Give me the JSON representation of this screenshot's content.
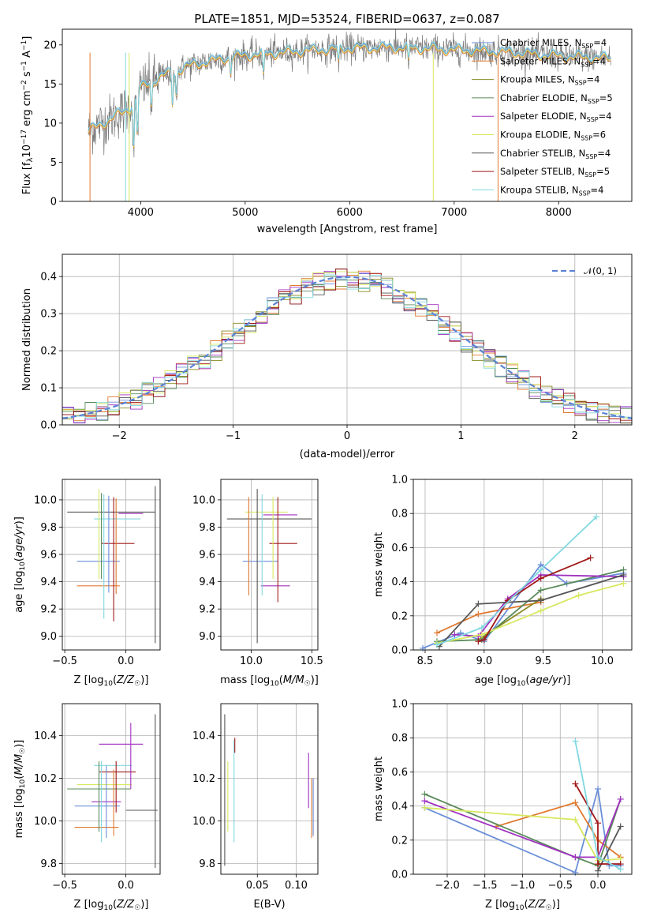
{
  "title": "PLATE=1851, MJD=53524, FIBERID=0637, z=0.087",
  "colors": {
    "Chabrier MILES": "#6a8fd8",
    "Salpeter MILES": "#e07a30",
    "Kroupa MILES": "#8a8a20",
    "Chabrier ELODIE": "#5a8a5a",
    "Salpeter ELODIE": "#a030c0",
    "Kroupa ELODIE": "#d8e860",
    "Chabrier STELIB": "#555555",
    "Salpeter STELIB": "#a01818",
    "Kroupa STELIB": "#80d8e0"
  },
  "chart_data": [
    {
      "id": "spectrum",
      "type": "line",
      "title": "PLATE=1851, MJD=53524, FIBERID=0637, z=0.087",
      "xlabel": "wavelength [Angstrom, rest frame]",
      "ylabel": "Flux [f_λ10^-17 erg cm^-2 s^-1 A^-1]",
      "xlim": [
        3250,
        8700
      ],
      "ylim": [
        0,
        22
      ],
      "xticks": [
        4000,
        5000,
        6000,
        7000,
        8000
      ],
      "yticks": [
        0,
        5,
        10,
        15,
        20
      ],
      "grid": false,
      "legend_position": "right",
      "legend": [
        {
          "name": "Chabrier MILES",
          "nssp": "4"
        },
        {
          "name": "Salpeter MILES",
          "nssp": "4"
        },
        {
          "name": "Kroupa MILES",
          "nssp": "4"
        },
        {
          "name": "Chabrier ELODIE",
          "nssp": "5"
        },
        {
          "name": "Salpeter ELODIE",
          "nssp": "4"
        },
        {
          "name": "Kroupa ELODIE",
          "nssp": "6"
        },
        {
          "name": "Chabrier STELIB",
          "nssp": "4"
        },
        {
          "name": "Salpeter STELIB",
          "nssp": "5"
        },
        {
          "name": "Kroupa STELIB",
          "nssp": "4"
        }
      ],
      "continuum": {
        "x": [
          3500,
          3700,
          3900,
          4000,
          4200,
          4500,
          4800,
          5000,
          5300,
          5600,
          6000,
          6500,
          7000,
          7500,
          8000,
          8500
        ],
        "y": [
          9,
          10.5,
          12,
          14.5,
          16,
          17.5,
          18.3,
          18.7,
          19,
          19.3,
          19.6,
          19.7,
          19.4,
          19.1,
          18.6,
          18.3
        ]
      }
    },
    {
      "id": "residuals",
      "type": "line",
      "xlabel": "(data-model)/error",
      "ylabel": "Normed distribution",
      "xlim": [
        -2.5,
        2.5
      ],
      "ylim": [
        0,
        0.46
      ],
      "xticks": [
        -2,
        -1,
        0,
        1,
        2
      ],
      "yticks": [
        0.0,
        0.1,
        0.2,
        0.3,
        0.4
      ],
      "grid": true,
      "legend_position": "top-right",
      "legend": [
        "𝒩(0, 1)"
      ],
      "bins": 50
    },
    {
      "id": "age-vs-Z",
      "type": "scatter",
      "xlabel": "Z [log10(Z/Z☉)]",
      "ylabel": "age [log10(age/yr)]",
      "xlim": [
        -0.52,
        0.28
      ],
      "ylim": [
        8.9,
        10.15
      ],
      "xticks": [
        -0.5,
        0.0
      ],
      "yticks": [
        9.0,
        9.2,
        9.4,
        9.6,
        9.8,
        10.0
      ],
      "grid": true,
      "errorbars": [
        {
          "series": "Chabrier STELIB",
          "x": [
            -0.48,
            0.24
          ],
          "y": [
            9.91,
            9.91
          ]
        },
        {
          "series": "Kroupa STELIB",
          "x": [
            -0.26,
            0.12
          ],
          "y": [
            9.86,
            9.86
          ]
        },
        {
          "series": "Salpeter ELODIE",
          "x": [
            -0.06,
            0.14
          ],
          "y": [
            9.9,
            9.9
          ]
        },
        {
          "series": "Salpeter STELIB",
          "x": [
            -0.2,
            0.07
          ],
          "y": [
            9.68,
            9.68
          ]
        },
        {
          "series": "Chabrier MILES",
          "x": [
            -0.4,
            -0.05
          ],
          "y": [
            9.55,
            9.55
          ]
        },
        {
          "series": "Salpeter MILES",
          "x": [
            -0.4,
            -0.05
          ],
          "y": [
            9.37,
            9.37
          ]
        },
        {
          "series": "Chabrier STELIB",
          "x": [
            0.24,
            0.24
          ],
          "y": [
            8.95,
            10.1
          ]
        },
        {
          "series": "Kroupa ELODIE",
          "x": [
            -0.22,
            -0.22
          ],
          "y": [
            9.42,
            10.08
          ]
        },
        {
          "series": "Chabrier ELODIE",
          "x": [
            -0.2,
            -0.2
          ],
          "y": [
            9.42,
            10.05
          ]
        },
        {
          "series": "Kroupa STELIB",
          "x": [
            -0.18,
            -0.18
          ],
          "y": [
            9.13,
            10.04
          ]
        },
        {
          "series": "Chabrier MILES",
          "x": [
            -0.14,
            -0.14
          ],
          "y": [
            9.32,
            10.03
          ]
        },
        {
          "series": "Salpeter STELIB",
          "x": [
            -0.1,
            -0.1
          ],
          "y": [
            9.11,
            10.02
          ]
        },
        {
          "series": "Salpeter MILES",
          "x": [
            -0.08,
            -0.08
          ],
          "y": [
            9.31,
            10.01
          ]
        }
      ]
    },
    {
      "id": "age-vs-mass",
      "type": "scatter",
      "xlabel": "mass [log10(M/M☉)]",
      "ylabel": "",
      "xlim": [
        9.75,
        10.55
      ],
      "ylim": [
        8.9,
        10.15
      ],
      "xticks": [
        10.0,
        10.5
      ],
      "yticks": [
        9.0,
        9.2,
        9.4,
        9.6,
        9.8,
        10.0
      ],
      "grid": true,
      "errorbars": [
        {
          "series": "Chabrier STELIB",
          "x": [
            9.8,
            10.5
          ],
          "y": [
            9.86,
            9.86
          ]
        },
        {
          "series": "Kroupa ELODIE",
          "x": [
            9.95,
            10.3
          ],
          "y": [
            9.91,
            9.91
          ]
        },
        {
          "series": "Salpeter ELODIE",
          "x": [
            10.1,
            10.38
          ],
          "y": [
            9.89,
            9.89
          ]
        },
        {
          "series": "Salpeter STELIB",
          "x": [
            10.15,
            10.38
          ],
          "y": [
            9.68,
            9.68
          ]
        },
        {
          "series": "Chabrier MILES",
          "x": [
            9.93,
            10.22
          ],
          "y": [
            9.55,
            9.55
          ]
        },
        {
          "series": "Salpeter ELODIE",
          "x": [
            10.08,
            10.32
          ],
          "y": [
            9.37,
            9.37
          ]
        },
        {
          "series": "Chabrier STELIB",
          "x": [
            10.05,
            10.05
          ],
          "y": [
            8.95,
            10.08
          ]
        },
        {
          "series": "Salpeter MILES",
          "x": [
            9.98,
            9.98
          ],
          "y": [
            9.3,
            10.02
          ]
        },
        {
          "series": "Kroupa STELIB",
          "x": [
            10.09,
            10.09
          ],
          "y": [
            9.3,
            10.04
          ]
        },
        {
          "series": "Salpeter STELIB",
          "x": [
            10.22,
            10.22
          ],
          "y": [
            9.25,
            10.02
          ]
        },
        {
          "series": "Kroupa ELODIE",
          "x": [
            10.18,
            10.18
          ],
          "y": [
            9.42,
            10.02
          ]
        }
      ]
    },
    {
      "id": "weight-vs-age",
      "type": "line",
      "xlabel": "age [log10(age/yr)]",
      "ylabel": "mass weight",
      "xlim": [
        8.4,
        10.25
      ],
      "ylim": [
        0,
        1.0
      ],
      "xticks": [
        8.5,
        9.0,
        9.5,
        10.0
      ],
      "yticks": [
        0.0,
        0.2,
        0.4,
        0.6,
        0.8,
        1.0
      ],
      "grid": true,
      "series": [
        {
          "key": "Chabrier MILES",
          "x": [
            8.48,
            8.8,
            9.0,
            9.48,
            9.7,
            10.18
          ],
          "y": [
            0.01,
            0.1,
            0.05,
            0.5,
            0.39,
            0.45
          ]
        },
        {
          "key": "Salpeter MILES",
          "x": [
            8.6,
            8.95,
            9.48
          ],
          "y": [
            0.1,
            0.21,
            0.28
          ]
        },
        {
          "key": "Kroupa MILES",
          "x": [
            8.95,
            9.48
          ],
          "y": [
            0.06,
            0.3
          ]
        },
        {
          "key": "Chabrier ELODIE",
          "x": [
            8.6,
            8.98,
            9.48,
            10.18
          ],
          "y": [
            0.05,
            0.06,
            0.35,
            0.47
          ]
        },
        {
          "key": "Salpeter ELODIE",
          "x": [
            8.75,
            8.95,
            9.2,
            9.48,
            10.18
          ],
          "y": [
            0.09,
            0.08,
            0.3,
            0.44,
            0.43
          ]
        },
        {
          "key": "Kroupa ELODIE",
          "x": [
            8.6,
            8.98,
            9.48,
            9.8,
            10.18
          ],
          "y": [
            0.04,
            0.09,
            0.23,
            0.32,
            0.39
          ]
        },
        {
          "key": "Chabrier STELIB",
          "x": [
            8.62,
            8.95,
            9.48,
            10.18
          ],
          "y": [
            0.02,
            0.27,
            0.29,
            0.44
          ]
        },
        {
          "key": "Salpeter STELIB",
          "x": [
            8.95,
            9.0,
            9.2,
            9.48,
            9.9
          ],
          "y": [
            0.05,
            0.06,
            0.29,
            0.42,
            0.54
          ]
        },
        {
          "key": "Kroupa STELIB",
          "x": [
            8.6,
            8.98,
            9.48,
            9.95
          ],
          "y": [
            0.03,
            0.13,
            0.47,
            0.78
          ]
        }
      ]
    },
    {
      "id": "mass-vs-Z",
      "type": "scatter",
      "xlabel": "Z [log10(Z/Z☉)]",
      "ylabel": "mass [log10(M/M☉)]",
      "xlim": [
        -0.52,
        0.28
      ],
      "ylim": [
        9.75,
        10.55
      ],
      "xticks": [
        -0.5,
        0.0
      ],
      "yticks": [
        9.8,
        10.0,
        10.2,
        10.4
      ],
      "grid": true,
      "errorbars": [
        {
          "series": "Salpeter ELODIE",
          "x": [
            -0.22,
            0.14
          ],
          "y": [
            10.36,
            10.36
          ]
        },
        {
          "series": "Kroupa STELIB",
          "x": [
            -0.26,
            0.05
          ],
          "y": [
            10.26,
            10.26
          ]
        },
        {
          "series": "Salpeter STELIB",
          "x": [
            -0.22,
            0.08
          ],
          "y": [
            10.23,
            10.23
          ]
        },
        {
          "series": "Kroupa ELODIE",
          "x": [
            -0.4,
            0.05
          ],
          "y": [
            10.17,
            10.17
          ]
        },
        {
          "series": "Chabrier ELODIE",
          "x": [
            -0.48,
            0.04
          ],
          "y": [
            10.15,
            10.15
          ]
        },
        {
          "series": "Salpeter ELODIE",
          "x": [
            -0.28,
            -0.04
          ],
          "y": [
            10.09,
            10.09
          ]
        },
        {
          "series": "Chabrier MILES",
          "x": [
            -0.42,
            -0.05
          ],
          "y": [
            10.07,
            10.07
          ]
        },
        {
          "series": "Chabrier STELIB",
          "x": [
            0.0,
            0.26
          ],
          "y": [
            10.05,
            10.05
          ]
        },
        {
          "series": "Salpeter MILES",
          "x": [
            -0.42,
            -0.06
          ],
          "y": [
            9.97,
            9.97
          ]
        },
        {
          "series": "Chabrier STELIB",
          "x": [
            0.24,
            0.24
          ],
          "y": [
            9.78,
            10.5
          ]
        },
        {
          "series": "Salpeter ELODIE",
          "x": [
            0.04,
            0.04
          ],
          "y": [
            10.15,
            10.46
          ]
        },
        {
          "series": "Kroupa STELIB",
          "x": [
            -0.2,
            -0.2
          ],
          "y": [
            9.9,
            10.28
          ]
        },
        {
          "series": "Chabrier ELODIE",
          "x": [
            -0.22,
            -0.22
          ],
          "y": [
            9.95,
            10.28
          ]
        },
        {
          "series": "Chabrier MILES",
          "x": [
            -0.16,
            -0.16
          ],
          "y": [
            9.92,
            10.26
          ]
        },
        {
          "series": "Salpeter MILES",
          "x": [
            -0.1,
            -0.1
          ],
          "y": [
            9.93,
            10.24
          ]
        },
        {
          "series": "Salpeter STELIB",
          "x": [
            -0.08,
            -0.08
          ],
          "y": [
            10.04,
            10.28
          ]
        }
      ]
    },
    {
      "id": "mass-vs-EBV",
      "type": "scatter",
      "xlabel": "E(B-V)",
      "ylabel": "",
      "xlim": [
        0.003,
        0.128
      ],
      "ylim": [
        9.75,
        10.55
      ],
      "xticks": [
        0.05,
        0.1
      ],
      "yticks": [
        9.8,
        10.0,
        10.2,
        10.4
      ],
      "grid": true,
      "errorbars": [
        {
          "series": "Chabrier STELIB",
          "x": [
            0.008,
            0.008
          ],
          "y": [
            9.79,
            10.5
          ]
        },
        {
          "series": "Kroupa ELODIE",
          "x": [
            0.012,
            0.012
          ],
          "y": [
            9.95,
            10.28
          ]
        },
        {
          "series": "Kroupa STELIB",
          "x": [
            0.02,
            0.02
          ],
          "y": [
            9.9,
            10.38
          ]
        },
        {
          "series": "Salpeter STELIB",
          "x": [
            0.021,
            0.021
          ],
          "y": [
            10.32,
            10.39
          ]
        },
        {
          "series": "Salpeter ELODIE",
          "x": [
            0.116,
            0.116
          ],
          "y": [
            10.06,
            10.32
          ]
        },
        {
          "series": "Salpeter MILES",
          "x": [
            0.12,
            0.12
          ],
          "y": [
            9.92,
            10.2
          ]
        },
        {
          "series": "Chabrier MILES",
          "x": [
            0.122,
            0.122
          ],
          "y": [
            9.93,
            10.2
          ]
        }
      ]
    },
    {
      "id": "weight-vs-Z",
      "type": "line",
      "xlabel": "Z [log10(Z/Z☉)]",
      "ylabel": "mass weight",
      "xlim": [
        -2.45,
        0.45
      ],
      "ylim": [
        0,
        1.0
      ],
      "xticks": [
        -2.0,
        -1.5,
        -1.0,
        -0.5,
        0.0
      ],
      "yticks": [
        0.0,
        0.2,
        0.4,
        0.6,
        0.8,
        1.0
      ],
      "grid": true,
      "series": [
        {
          "key": "Chabrier MILES",
          "x": [
            -2.3,
            -0.3,
            0.0,
            0.15,
            0.3
          ],
          "y": [
            0.39,
            0.01,
            0.5,
            0.05,
            0.05
          ]
        },
        {
          "key": "Salpeter MILES",
          "x": [
            -1.35,
            -0.3,
            0.0,
            0.3
          ],
          "y": [
            0.28,
            0.42,
            0.2,
            0.1
          ]
        },
        {
          "key": "Chabrier ELODIE",
          "x": [
            -2.3,
            -0.3,
            0.0,
            0.3
          ],
          "y": [
            0.47,
            0.1,
            0.05,
            0.44
          ]
        },
        {
          "key": "Salpeter ELODIE",
          "x": [
            -2.3,
            -0.3,
            0.0,
            0.3
          ],
          "y": [
            0.43,
            0.1,
            0.1,
            0.44
          ]
        },
        {
          "key": "Kroupa ELODIE",
          "x": [
            -2.3,
            -0.3,
            0.0,
            0.3
          ],
          "y": [
            0.39,
            0.32,
            0.08,
            0.09
          ]
        },
        {
          "key": "Chabrier STELIB",
          "x": [
            0.0,
            0.3
          ],
          "y": [
            0.02,
            0.28
          ]
        },
        {
          "key": "Salpeter STELIB",
          "x": [
            -0.3,
            0.0,
            0.0,
            0.3
          ],
          "y": [
            0.53,
            0.3,
            0.06,
            0.06
          ]
        },
        {
          "key": "Kroupa STELIB",
          "x": [
            -0.3,
            0.0,
            0.3
          ],
          "y": [
            0.78,
            0.1,
            0.03
          ]
        }
      ]
    }
  ]
}
